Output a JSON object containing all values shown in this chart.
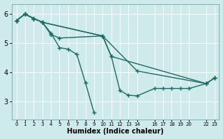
{
  "bg_color": "#ceeaea",
  "grid_color": "#b8d8d8",
  "line_color": "#1a6b62",
  "line_width": 1.0,
  "marker": "+",
  "marker_size": 4,
  "marker_lw": 1.0,
  "xlabel": "Humidex (Indice chaleur)",
  "xlabel_fontsize": 7,
  "xlim": [
    -0.5,
    23.5
  ],
  "ylim": [
    2.4,
    6.35
  ],
  "yticks": [
    3,
    4,
    5,
    6
  ],
  "ytick_fontsize": 7,
  "xtick_fontsize": 5,
  "xtick_positions": [
    0,
    1,
    2,
    3,
    4,
    5,
    6,
    7,
    8,
    9,
    10,
    11,
    12,
    13,
    14,
    16,
    17,
    18,
    19,
    20,
    22,
    23
  ],
  "xtick_labels": [
    "0",
    "1",
    "2",
    "3",
    "4",
    "5",
    "6",
    "7",
    "8",
    "9",
    "10",
    "11",
    "12",
    "13",
    "14",
    "16",
    "17",
    "18",
    "19",
    "20",
    "22",
    "23"
  ],
  "series": [
    [
      [
        0,
        5.78
      ],
      [
        1,
        6.0
      ],
      [
        2,
        5.85
      ],
      [
        3,
        5.72
      ],
      [
        4,
        5.35
      ],
      [
        5,
        4.85
      ],
      [
        6,
        4.8
      ],
      [
        7,
        4.62
      ],
      [
        8,
        3.65
      ],
      [
        9,
        2.62
      ]
    ],
    [
      [
        0,
        5.78
      ],
      [
        1,
        6.0
      ],
      [
        2,
        5.85
      ],
      [
        3,
        5.72
      ],
      [
        4,
        5.3
      ],
      [
        5,
        5.18
      ],
      [
        10,
        5.25
      ],
      [
        11,
        4.55
      ],
      [
        12,
        3.38
      ],
      [
        13,
        3.22
      ],
      [
        14,
        3.2
      ],
      [
        16,
        3.45
      ],
      [
        17,
        3.45
      ],
      [
        18,
        3.45
      ],
      [
        19,
        3.45
      ],
      [
        20,
        3.45
      ],
      [
        22,
        3.62
      ],
      [
        23,
        3.82
      ]
    ],
    [
      [
        0,
        5.78
      ],
      [
        1,
        6.0
      ],
      [
        2,
        5.85
      ],
      [
        3,
        5.72
      ],
      [
        10,
        5.25
      ],
      [
        11,
        4.55
      ],
      [
        22,
        3.62
      ],
      [
        23,
        3.82
      ]
    ],
    [
      [
        0,
        5.78
      ],
      [
        1,
        6.0
      ],
      [
        2,
        5.85
      ],
      [
        3,
        5.72
      ],
      [
        10,
        5.25
      ],
      [
        14,
        4.05
      ],
      [
        22,
        3.62
      ],
      [
        23,
        3.82
      ]
    ]
  ]
}
